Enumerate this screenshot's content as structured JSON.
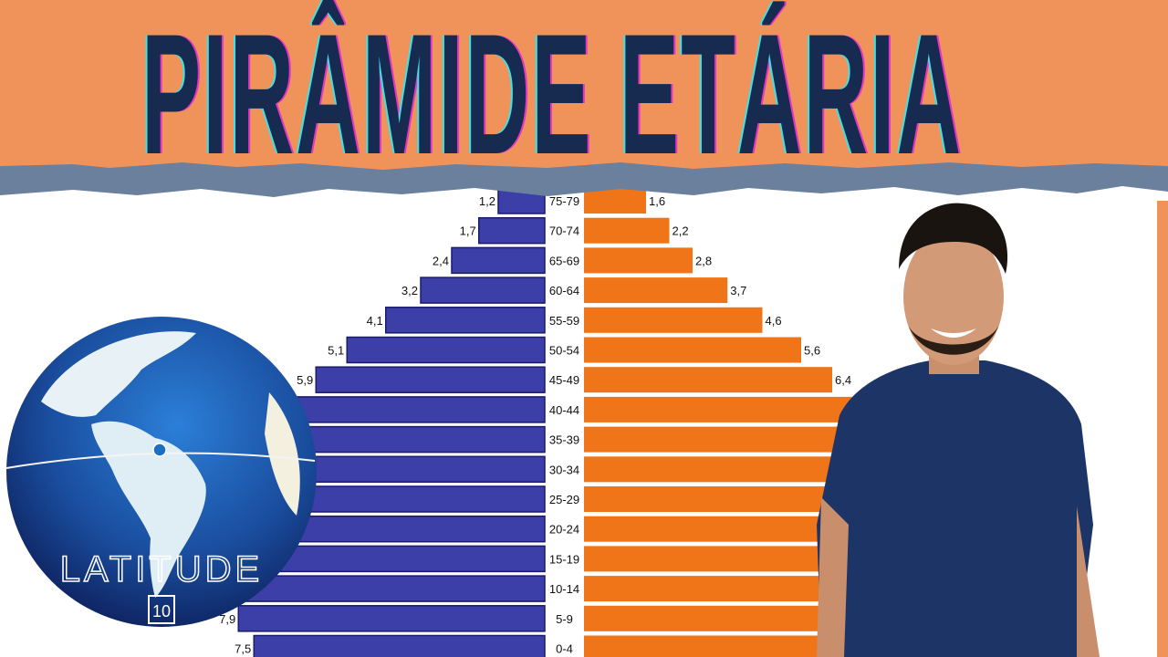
{
  "title": "PIRÂMIDE ETÁRIA",
  "logo": {
    "text": "LATITUDE",
    "number": "10"
  },
  "colors": {
    "header": "#f0935a",
    "title": "#172a50",
    "male": "#3d3fa8",
    "female": "#f07418",
    "torn_strip": "#6a809c"
  },
  "chart_data": {
    "type": "bar",
    "orientation": "horizontal-population-pyramid",
    "categories": [
      "75-79",
      "70-74",
      "65-69",
      "60-64",
      "55-59",
      "50-54",
      "45-49",
      "40-44",
      "35-39",
      "30-34",
      "25-29",
      "20-24",
      "15-19",
      "10-14",
      "5-9",
      "0-4"
    ],
    "series": [
      {
        "side": "left",
        "color": "#3d3fa8",
        "values": [
          1.2,
          1.7,
          2.4,
          3.2,
          4.1,
          5.1,
          5.9,
          6.4,
          6.8,
          7.2,
          7.5,
          7.7,
          7.8,
          7.9,
          7.9,
          7.5
        ],
        "labels": [
          "1,2",
          "1,7",
          "2,4",
          "3,2",
          "4,1",
          "5,1",
          "5,9",
          "",
          "",
          "",
          "",
          "",
          "",
          "",
          "7,9",
          "7,5"
        ]
      },
      {
        "side": "right",
        "color": "#f07418",
        "values": [
          1.6,
          2.2,
          2.8,
          3.7,
          4.6,
          5.6,
          6.4,
          7.0,
          7.3,
          7.5,
          7.6,
          7.5,
          7.4,
          7.4,
          7.5,
          7.2
        ],
        "labels": [
          "1,6",
          "2,2",
          "2,8",
          "3,7",
          "4,6",
          "5,6",
          "6,4",
          "",
          "",
          "",
          "",
          "",
          "",
          "",
          "",
          ""
        ]
      }
    ]
  }
}
